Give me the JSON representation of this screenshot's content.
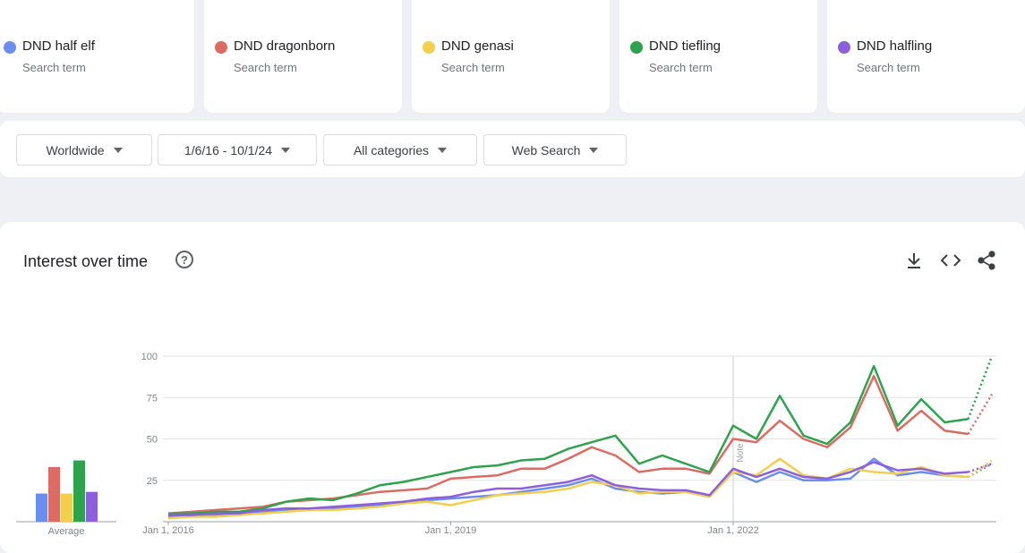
{
  "cards": [
    {
      "subtitle": "Search term"
    },
    {
      "subtitle": "Search term"
    },
    {
      "subtitle": "Search term"
    },
    {
      "subtitle": "Search term"
    },
    {
      "subtitle": "Search term"
    }
  ],
  "filters": [
    "Worldwide",
    "1/6/16 - 10/1/24",
    "All categories",
    "Web Search"
  ],
  "chart_data": {
    "type": "line",
    "title": "Interest over time",
    "x": [
      "2016-01-01",
      "2016-04-01",
      "2016-07-01",
      "2016-10-01",
      "2017-01-01",
      "2017-04-01",
      "2017-07-01",
      "2017-10-01",
      "2018-01-01",
      "2018-04-01",
      "2018-07-01",
      "2018-10-01",
      "2019-01-01",
      "2019-04-01",
      "2019-07-01",
      "2019-10-01",
      "2020-01-01",
      "2020-04-01",
      "2020-07-01",
      "2020-10-01",
      "2021-01-01",
      "2021-04-01",
      "2021-07-01",
      "2021-10-01",
      "2022-01-01",
      "2022-04-01",
      "2022-07-01",
      "2022-10-01",
      "2023-01-01",
      "2023-04-01",
      "2023-07-01",
      "2023-10-01",
      "2024-01-01",
      "2024-04-01",
      "2024-07-01",
      "2024-10-01"
    ],
    "xlim": [
      "2016-01-01",
      "2024-10-01"
    ],
    "xticks": [
      {
        "value": "2016-01-01",
        "label": "Jan 1, 2016"
      },
      {
        "value": "2019-01-01",
        "label": "Jan 1, 2019"
      },
      {
        "value": "2022-01-01",
        "label": "Jan 1, 2022"
      }
    ],
    "ylim": [
      0,
      100
    ],
    "yticks": [
      25,
      50,
      75,
      100
    ],
    "grid": true,
    "last_point_partial": true,
    "annotations": [
      {
        "x": "2022-01-01",
        "text": "Note"
      }
    ],
    "series": [
      {
        "name": "DND half elf",
        "color": "#6a8ef0",
        "values": [
          3,
          4,
          4,
          5,
          6,
          7,
          8,
          8,
          9,
          10,
          12,
          13,
          14,
          15,
          16,
          18,
          20,
          22,
          26,
          20,
          18,
          17,
          18,
          15,
          30,
          24,
          30,
          25,
          25,
          26,
          38,
          28,
          30,
          28,
          27,
          35
        ]
      },
      {
        "name": "DND dragonborn",
        "color": "#dc6b63",
        "values": [
          5,
          6,
          7,
          8,
          9,
          12,
          13,
          14,
          16,
          18,
          19,
          20,
          26,
          27,
          28,
          32,
          32,
          38,
          45,
          40,
          30,
          32,
          32,
          29,
          50,
          48,
          61,
          50,
          45,
          57,
          88,
          55,
          67,
          55,
          53,
          77
        ]
      },
      {
        "name": "DND genasi",
        "color": "#f2cf4d",
        "values": [
          2,
          3,
          3,
          4,
          5,
          6,
          7,
          7,
          8,
          9,
          11,
          12,
          10,
          13,
          16,
          17,
          18,
          20,
          24,
          22,
          17,
          18,
          18,
          15,
          30,
          28,
          38,
          28,
          26,
          32,
          30,
          29,
          33,
          28,
          27,
          37
        ]
      },
      {
        "name": "DND tiefling",
        "color": "#2ea34d",
        "values": [
          5,
          5,
          6,
          6,
          8,
          12,
          14,
          13,
          17,
          22,
          24,
          27,
          30,
          33,
          34,
          37,
          38,
          44,
          48,
          52,
          35,
          40,
          35,
          30,
          58,
          50,
          76,
          52,
          47,
          60,
          94,
          58,
          74,
          60,
          62,
          100
        ]
      },
      {
        "name": "DND halfling",
        "color": "#8c60dc",
        "values": [
          4,
          4,
          5,
          5,
          7,
          8,
          8,
          9,
          10,
          11,
          12,
          14,
          15,
          18,
          20,
          20,
          22,
          24,
          28,
          22,
          20,
          19,
          19,
          16,
          32,
          27,
          32,
          27,
          26,
          30,
          36,
          31,
          32,
          29,
          30,
          35
        ]
      }
    ],
    "averages": {
      "label": "Average",
      "values": [
        17,
        33,
        17,
        37,
        18
      ]
    }
  }
}
